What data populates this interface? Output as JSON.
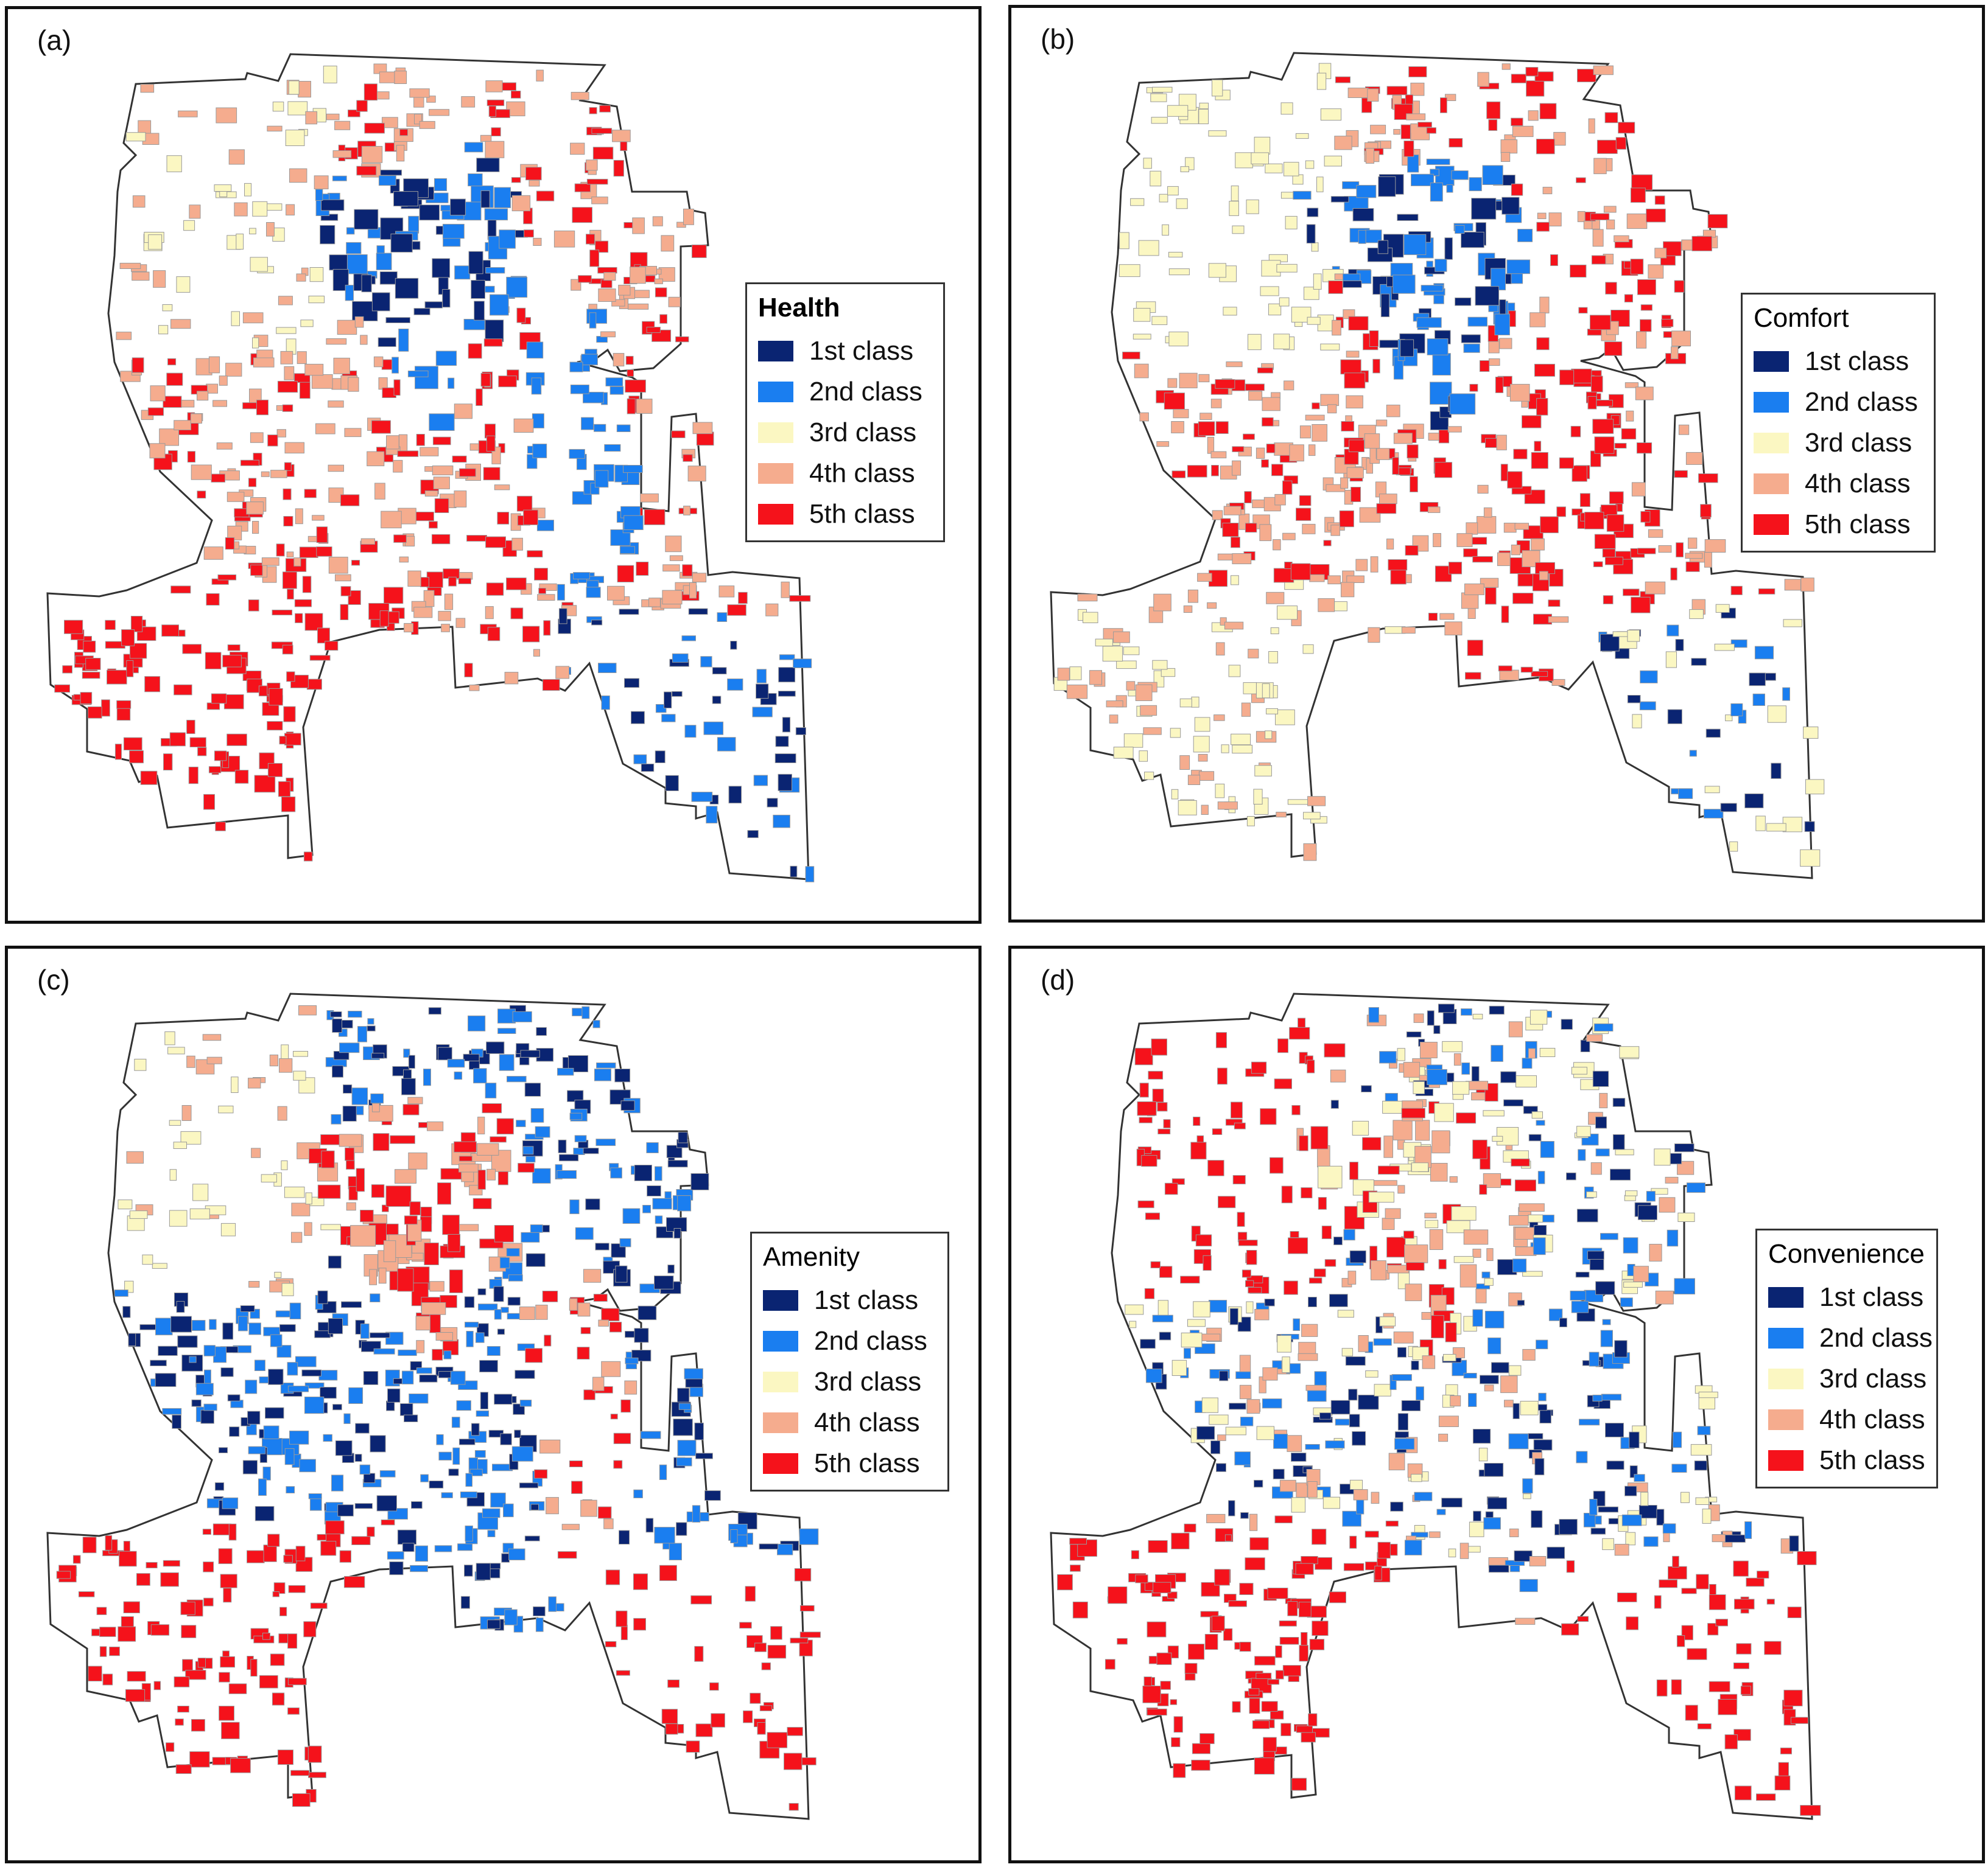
{
  "classes": [
    {
      "label": "1st class",
      "color": "#0a2472"
    },
    {
      "label": "2nd class",
      "color": "#1a7ef0"
    },
    {
      "label": "3rd class",
      "color": "#fbf7c2"
    },
    {
      "label": "4th class",
      "color": "#f5ac8e"
    },
    {
      "label": "5th class",
      "color": "#f5121b"
    }
  ],
  "panels": [
    {
      "label": "(a)",
      "title": "Health",
      "title_bold": true,
      "legend_position": "right",
      "dominant": {
        "north_wedge": "1st-2nd",
        "northwest": "3rd-4th",
        "center": "4th-5th",
        "east_strip": "2nd",
        "southwest": "5th",
        "southeast": "1st-2nd"
      }
    },
    {
      "label": "(b)",
      "title": "Comfort",
      "title_bold": false,
      "legend_position": "right",
      "dominant": {
        "north_wedge": "1st-2nd",
        "northwest": "3rd",
        "center": "4th-5th",
        "east_strip": "5th",
        "southwest": "3rd-4th",
        "southeast": "1st-3rd"
      }
    },
    {
      "label": "(c)",
      "title": "Amenity",
      "title_bold": false,
      "legend_position": "right",
      "dominant": {
        "north_wedge": "4th-5th",
        "northwest": "3rd-4th",
        "center": "1st-2nd",
        "east_strip": "4th-5th",
        "southwest": "5th",
        "southeast": "5th"
      }
    },
    {
      "label": "(d)",
      "title": "Convenience",
      "title_bold": false,
      "legend_position": "right",
      "dominant": {
        "north_wedge": "3rd-5th",
        "northwest": "5th",
        "center": "1st-4th",
        "east_strip": "1st-2nd",
        "southwest": "5th",
        "southeast": "5th"
      }
    }
  ]
}
